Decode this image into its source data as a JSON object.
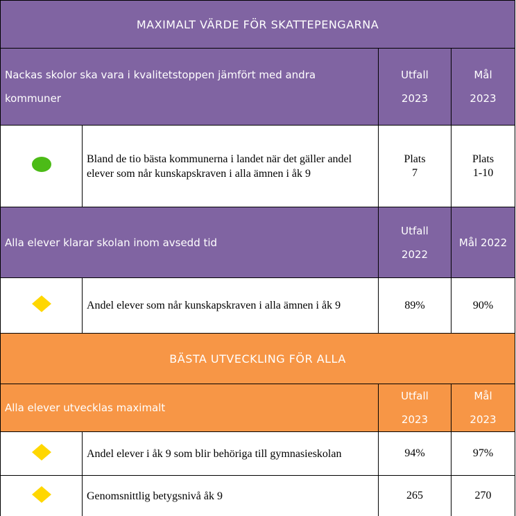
{
  "sections": [
    {
      "title": "MAXIMALT VÄRDE FÖR SKATTEPENGARNA",
      "groups": [
        {
          "header": {
            "goal": "Nackas skolor ska vara i kvalitetstoppen jämfört med andra kommuner",
            "result": "Utfall\n2023",
            "target": "Mål\n2023"
          },
          "rows": [
            {
              "text": "Bland de tio bästa kommunerna i landet när det gäller andel elever som når kunskapskraven i alla ämnen i åk 9",
              "result": "Plats\n7",
              "target": "Plats\n1-10"
            }
          ]
        },
        {
          "header": {
            "goal": "Alla elever klarar skolan inom avsedd tid",
            "result": "Utfall\n2022",
            "target": "Mål 2022"
          },
          "rows": [
            {
              "text": "Andel elever som når kunskapskraven i alla ämnen i åk 9",
              "result": "89%",
              "target": "90%"
            }
          ]
        }
      ]
    },
    {
      "title": "BÄSTA UTVECKLING FÖR ALLA",
      "groups": [
        {
          "header": {
            "goal": "Alla elever utvecklas maximalt",
            "result": "Utfall\n2023",
            "target": "Mål\n2023"
          },
          "rows": [
            {
              "text": "Andel elever i åk 9 som blir behöriga till gymnasieskolan",
              "result": "94%",
              "target": "97%"
            },
            {
              "text": "Genomsnittlig betygsnivå åk 9",
              "result": "265",
              "target": "270"
            }
          ]
        }
      ]
    }
  ]
}
